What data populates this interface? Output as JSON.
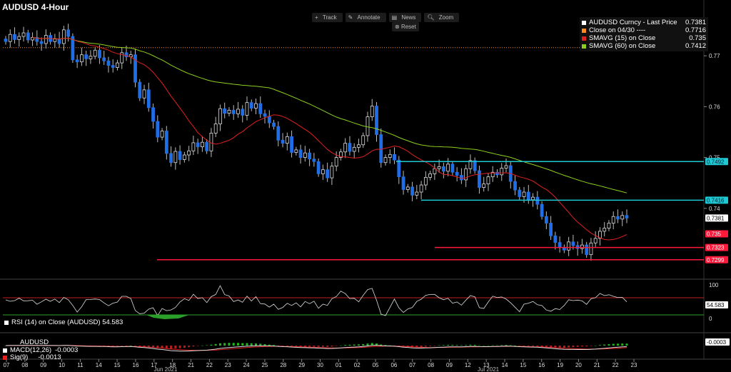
{
  "title": "AUDUSD 4-Hour",
  "toolbar": {
    "track": "Track",
    "annotate": "Annotate",
    "news": "News",
    "zoom": "Zoom",
    "reset": "Reset"
  },
  "legend": [
    {
      "label": "AUDUSD Curncy - Last Price",
      "value": "0.7381",
      "color": "#ffffff"
    },
    {
      "label": "Close on 04/30 ----",
      "value": "0.7716",
      "color": "#ff8c1a"
    },
    {
      "label": "SMAVG (15)  on Close",
      "value": "0.735",
      "color": "#e02020"
    },
    {
      "label": "SMAVG (60)  on Close",
      "value": "0.7412",
      "color": "#8ccf1c"
    }
  ],
  "rsi": {
    "label": "RSI (14)  on Close (AUDUSD) 54.583",
    "value": "54.583",
    "tick_top": "100",
    "tick_bottom": "0"
  },
  "macd": {
    "title": "AUDUSD",
    "rows": [
      {
        "label": "MACD(12,26)",
        "value": "-0.0003",
        "color": "#ffffff"
      },
      {
        "label": "Sig(9)",
        "value": "-0.0013",
        "color": "#e02020"
      }
    ],
    "value_tag": "-0.0003"
  },
  "chart_data": {
    "type": "candlestick",
    "y_ticks": [
      "0.77",
      "0.76",
      "0.75",
      "0.74"
    ],
    "ylim": [
      0.7265,
      0.779
    ],
    "x_labels": [
      "07",
      "08",
      "09",
      "10",
      "11",
      "14",
      "15",
      "16",
      "17",
      "18",
      "21",
      "22",
      "23",
      "24",
      "25",
      "28",
      "29",
      "30",
      "01",
      "02",
      "05",
      "06",
      "07",
      "08",
      "09",
      "12",
      "13",
      "14",
      "15",
      "16",
      "19",
      "20",
      "21",
      "22",
      "23"
    ],
    "month_labels": [
      "Jun 2021",
      "Jul 2021"
    ],
    "last_price": 0.7381,
    "reference_line": {
      "value": 0.7716,
      "color": "#ff8c1a"
    },
    "levels": [
      {
        "value": "0.7492",
        "color": "#1fc9d3"
      },
      {
        "value": "0.7416",
        "color": "#1fc9d3"
      },
      {
        "value": "0.735",
        "color": "#ff1a3c"
      },
      {
        "value": "0.7323",
        "color": "#ff1a3c"
      },
      {
        "value": "0.7299",
        "color": "#ff1a3c"
      }
    ],
    "close_series": [
      0.7728,
      0.7742,
      0.7732,
      0.7738,
      0.7745,
      0.7731,
      0.7736,
      0.7728,
      0.7724,
      0.774,
      0.7728,
      0.7733,
      0.7724,
      0.7751,
      0.7738,
      0.7692,
      0.7688,
      0.7702,
      0.7694,
      0.7699,
      0.7711,
      0.7696,
      0.769,
      0.7681,
      0.7677,
      0.7686,
      0.7706,
      0.7698,
      0.7702,
      0.7648,
      0.7617,
      0.7633,
      0.7598,
      0.7571,
      0.754,
      0.7552,
      0.7508,
      0.749,
      0.7512,
      0.7496,
      0.7505,
      0.7513,
      0.7529,
      0.7521,
      0.753,
      0.7513,
      0.7548,
      0.7566,
      0.7596,
      0.7587,
      0.7593,
      0.7586,
      0.7595,
      0.7583,
      0.7608,
      0.7597,
      0.7606,
      0.7586,
      0.7581,
      0.7568,
      0.7561,
      0.7534,
      0.7528,
      0.7541,
      0.751,
      0.7515,
      0.75,
      0.7509,
      0.7497,
      0.7492,
      0.7468,
      0.7476,
      0.746,
      0.7483,
      0.75,
      0.7511,
      0.7528,
      0.7512,
      0.752,
      0.7525,
      0.7543,
      0.758,
      0.7601,
      0.7545,
      0.749,
      0.75,
      0.7506,
      0.7495,
      0.7462,
      0.7437,
      0.7442,
      0.7426,
      0.7432,
      0.7446,
      0.7461,
      0.7468,
      0.7478,
      0.7482,
      0.7473,
      0.7487,
      0.7471,
      0.7465,
      0.7456,
      0.7478,
      0.7494,
      0.7474,
      0.7441,
      0.7448,
      0.7462,
      0.7471,
      0.7466,
      0.7479,
      0.7484,
      0.7453,
      0.7436,
      0.7423,
      0.7432,
      0.7417,
      0.7422,
      0.7408,
      0.7384,
      0.7371,
      0.7346,
      0.7333,
      0.7323,
      0.7318,
      0.7334,
      0.7327,
      0.7321,
      0.7328,
      0.7309,
      0.7332,
      0.7341,
      0.7355,
      0.7361,
      0.7371,
      0.7384,
      0.7379,
      0.7386,
      0.7381
    ],
    "sma15_label": "SMAVG (15)",
    "sma60_label": "SMAVG (60)"
  }
}
